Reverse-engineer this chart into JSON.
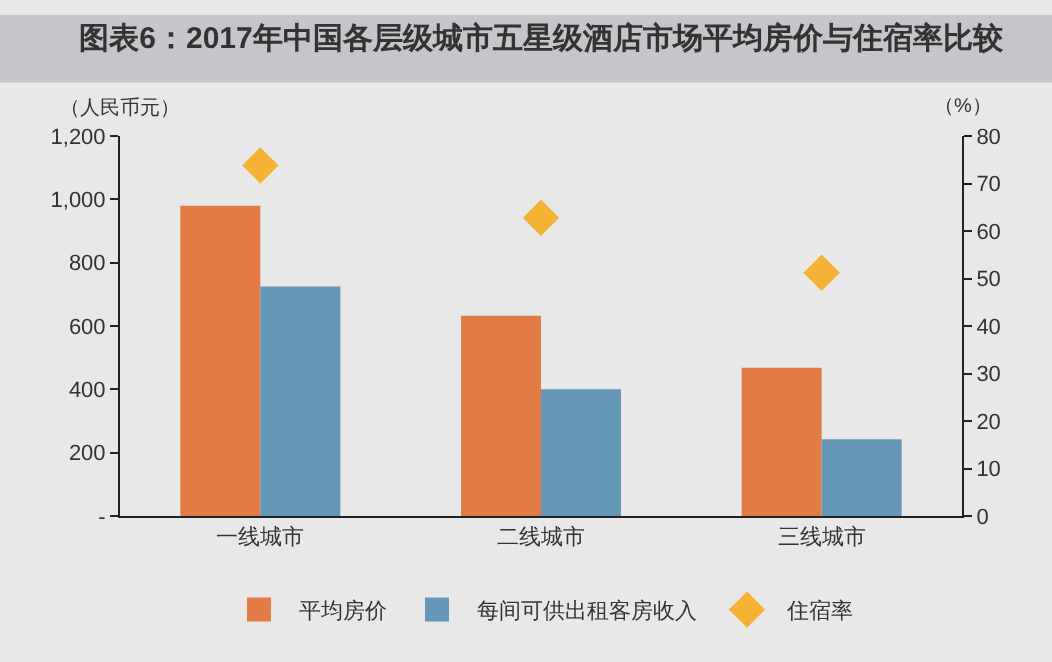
{
  "chart_data": {
    "type": "bar",
    "title": "图表6：2017年中国各层级城市五星级酒店市场平均房价与住宿率比较",
    "ylabel": "（人民币元）",
    "y2label": "（%）",
    "categories": [
      "一线城市",
      "二线城市",
      "三线城市"
    ],
    "series": [
      {
        "name": "平均房价",
        "color": "#e27b45",
        "values": [
          980,
          632,
          468
        ]
      },
      {
        "name": "每间可供出租客房收入",
        "color": "#6598b6",
        "values": [
          725,
          400,
          242
        ]
      },
      {
        "name": "住宿率",
        "type": "scatter",
        "axis": "y2",
        "marker": "diamond",
        "color": "#f5b335",
        "values": [
          73.8,
          62.8,
          51.2
        ]
      }
    ],
    "ylim": [
      0,
      1200
    ],
    "yticks": [
      {
        "value": 0,
        "label": "-"
      },
      200,
      400,
      600,
      800,
      {
        "value": 1000,
        "label": "1,000"
      },
      {
        "value": 1200,
        "label": "1,200"
      }
    ],
    "y2lim": [
      0,
      80
    ],
    "y2ticks": [
      0,
      10,
      20,
      30,
      40,
      50,
      60,
      70,
      80
    ],
    "grid": false,
    "legend": "bottom"
  }
}
